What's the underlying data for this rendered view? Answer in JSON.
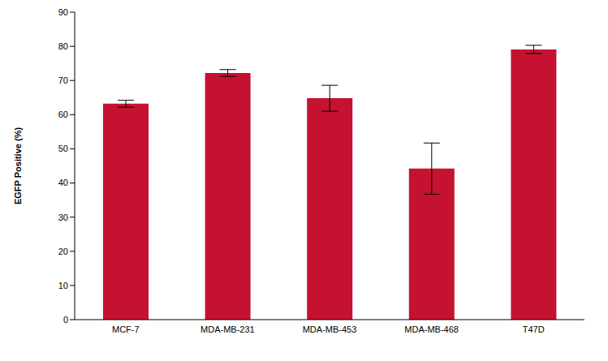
{
  "chart_data": {
    "type": "bar",
    "categories": [
      "MCF-7",
      "MDA-MB-231",
      "MDA-MB-453",
      "MDA-MB-468",
      "T47D"
    ],
    "values": [
      63.2,
      72.2,
      64.8,
      44.2,
      79.1
    ],
    "errors": [
      1.0,
      1.0,
      3.8,
      7.5,
      1.2
    ],
    "color": "#c41230",
    "y_label": "EGFP Positive (%)",
    "ylim": [
      0,
      90
    ],
    "yticks": [
      0,
      10,
      20,
      30,
      40,
      50,
      60,
      70,
      80,
      90
    ],
    "grid": false
  }
}
